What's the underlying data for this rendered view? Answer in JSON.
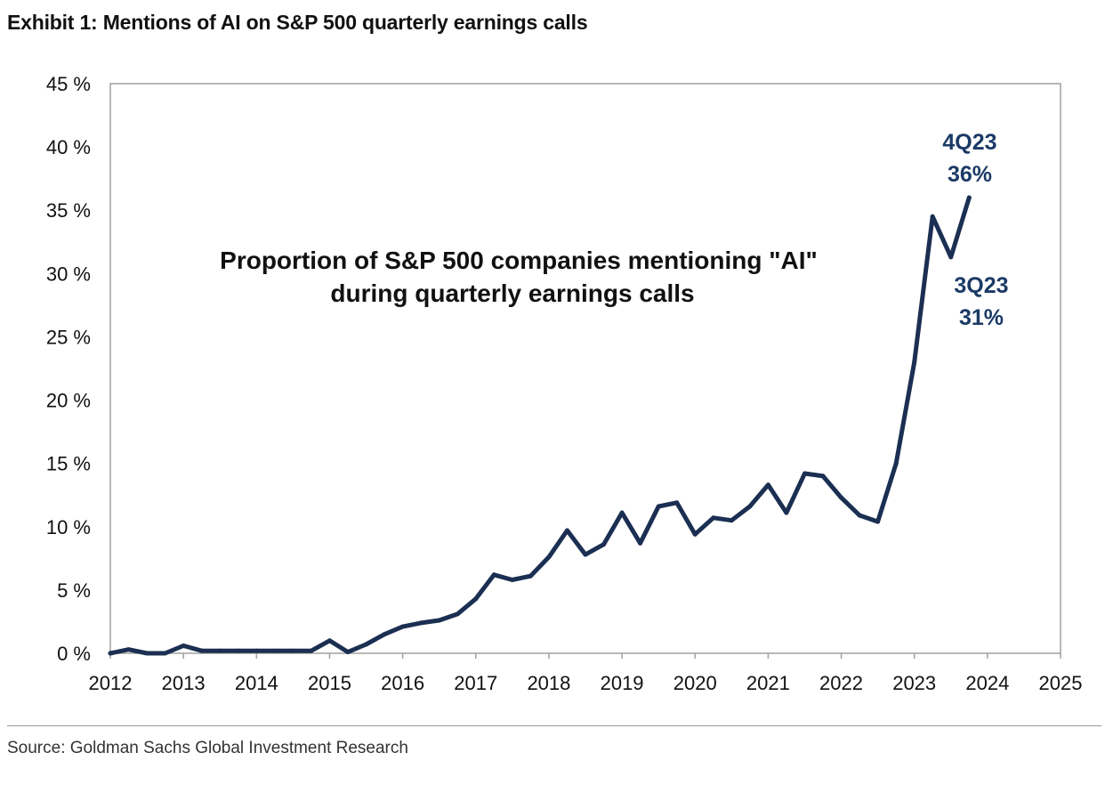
{
  "header": {
    "title": "Exhibit 1: Mentions of AI on S&P 500 quarterly earnings calls"
  },
  "footer": {
    "source": "Source: Goldman Sachs Global Investment Research"
  },
  "chart_data": {
    "type": "line",
    "title": "",
    "inner_title": [
      "Proportion of S&P 500 companies mentioning \"AI\"",
      "during quarterly earnings calls"
    ],
    "xlabel": "",
    "ylabel": "",
    "xlim": [
      2012,
      2025
    ],
    "ylim": [
      0,
      45
    ],
    "grid": false,
    "line_color": "#1b2f52",
    "x_ticks": [
      "2012",
      "2013",
      "2014",
      "2015",
      "2016",
      "2017",
      "2018",
      "2019",
      "2020",
      "2021",
      "2022",
      "2023",
      "2024",
      "2025"
    ],
    "y_ticks": [
      "0 %",
      "5 %",
      "10 %",
      "15 %",
      "20 %",
      "25 %",
      "30 %",
      "35 %",
      "40 %",
      "45 %"
    ],
    "series": [
      {
        "x": [
          2012.0,
          2012.25,
          2012.5,
          2012.75,
          2013.0,
          2013.25,
          2013.5,
          2013.75,
          2014.0,
          2014.25,
          2014.5,
          2014.75,
          2015.0,
          2015.25,
          2015.5,
          2015.75,
          2016.0,
          2016.25,
          2016.5,
          2016.75,
          2017.0,
          2017.25,
          2017.5,
          2017.75,
          2018.0,
          2018.25,
          2018.5,
          2018.75,
          2019.0,
          2019.25,
          2019.5,
          2019.75,
          2020.0,
          2020.25,
          2020.5,
          2020.75,
          2021.0,
          2021.25,
          2021.5,
          2021.75,
          2022.0,
          2022.25,
          2022.5,
          2022.75,
          2023.0,
          2023.25,
          2023.5,
          2023.75
        ],
        "values": [
          0.0,
          0.3,
          0.0,
          0.0,
          0.6,
          0.2,
          0.2,
          0.2,
          0.2,
          0.2,
          0.2,
          0.2,
          1.0,
          0.1,
          0.7,
          1.5,
          2.1,
          2.4,
          2.6,
          3.1,
          4.3,
          6.2,
          5.8,
          6.1,
          7.6,
          9.7,
          7.8,
          8.6,
          11.1,
          8.7,
          11.6,
          11.9,
          9.4,
          10.7,
          10.5,
          11.6,
          13.3,
          11.1,
          14.2,
          14.0,
          12.3,
          10.9,
          10.4,
          15.0,
          23.0,
          34.5,
          31.3,
          36.0
        ]
      }
    ],
    "annotations": [
      {
        "lines": [
          "4Q23",
          "36%"
        ],
        "x": 2023.75,
        "y": 36
      },
      {
        "lines": [
          "3Q23",
          "31%"
        ],
        "x": 2023.5,
        "y": 31
      }
    ]
  }
}
